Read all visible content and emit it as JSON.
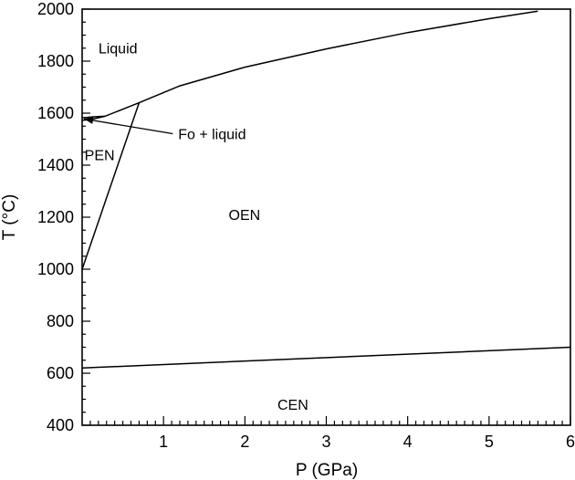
{
  "chart_data": {
    "type": "line",
    "xlabel": "P (GPa)",
    "ylabel": "T (°C)",
    "xlim": [
      0,
      6
    ],
    "ylim": [
      400,
      2000
    ],
    "x_ticks": [
      "1",
      "2",
      "3",
      "4",
      "5",
      "6"
    ],
    "x_tick_values": [
      1,
      2,
      3,
      4,
      5,
      6
    ],
    "x_minor_step": 0.1,
    "y_ticks": [
      "400",
      "600",
      "800",
      "1000",
      "1200",
      "1400",
      "1600",
      "1800",
      "2000"
    ],
    "y_tick_values": [
      400,
      600,
      800,
      1000,
      1200,
      1400,
      1600,
      1800,
      2000
    ],
    "y_minor_step": 50,
    "grid": false,
    "series": [
      {
        "key": "liquidus",
        "x": [
          0.28,
          0.7,
          1.2,
          2.0,
          3.0,
          4.0,
          5.0,
          5.6
        ],
        "y": [
          1588,
          1640,
          1705,
          1777,
          1847,
          1910,
          1963,
          1992
        ]
      },
      {
        "key": "fo_liquid_lower",
        "x": [
          0.0,
          0.1,
          0.28
        ],
        "y": [
          1573,
          1575,
          1588
        ]
      },
      {
        "key": "fo_liquid_upper",
        "x": [
          0.0,
          0.14,
          0.28
        ],
        "y": [
          1582,
          1586,
          1588
        ]
      },
      {
        "key": "pen_oen_boundary",
        "x": [
          0.0,
          0.7
        ],
        "y": [
          1000,
          1640
        ]
      },
      {
        "key": "oen_cen_boundary",
        "x": [
          0.0,
          6.0
        ],
        "y": [
          620,
          700
        ]
      }
    ],
    "annotations": [
      {
        "key": "liquid",
        "text": "Liquid",
        "x": 0.2,
        "y": 1830
      },
      {
        "key": "pen",
        "text": "PEN",
        "x": 0.03,
        "y": 1420
      },
      {
        "key": "oen",
        "text": "OEN",
        "x": 1.8,
        "y": 1190
      },
      {
        "key": "cen",
        "text": "CEN",
        "x": 2.4,
        "y": 460
      },
      {
        "key": "fo-liquid",
        "text": "Fo + liquid",
        "x": 1.18,
        "y": 1500,
        "arrow_to": [
          0.0,
          1578
        ]
      }
    ]
  }
}
